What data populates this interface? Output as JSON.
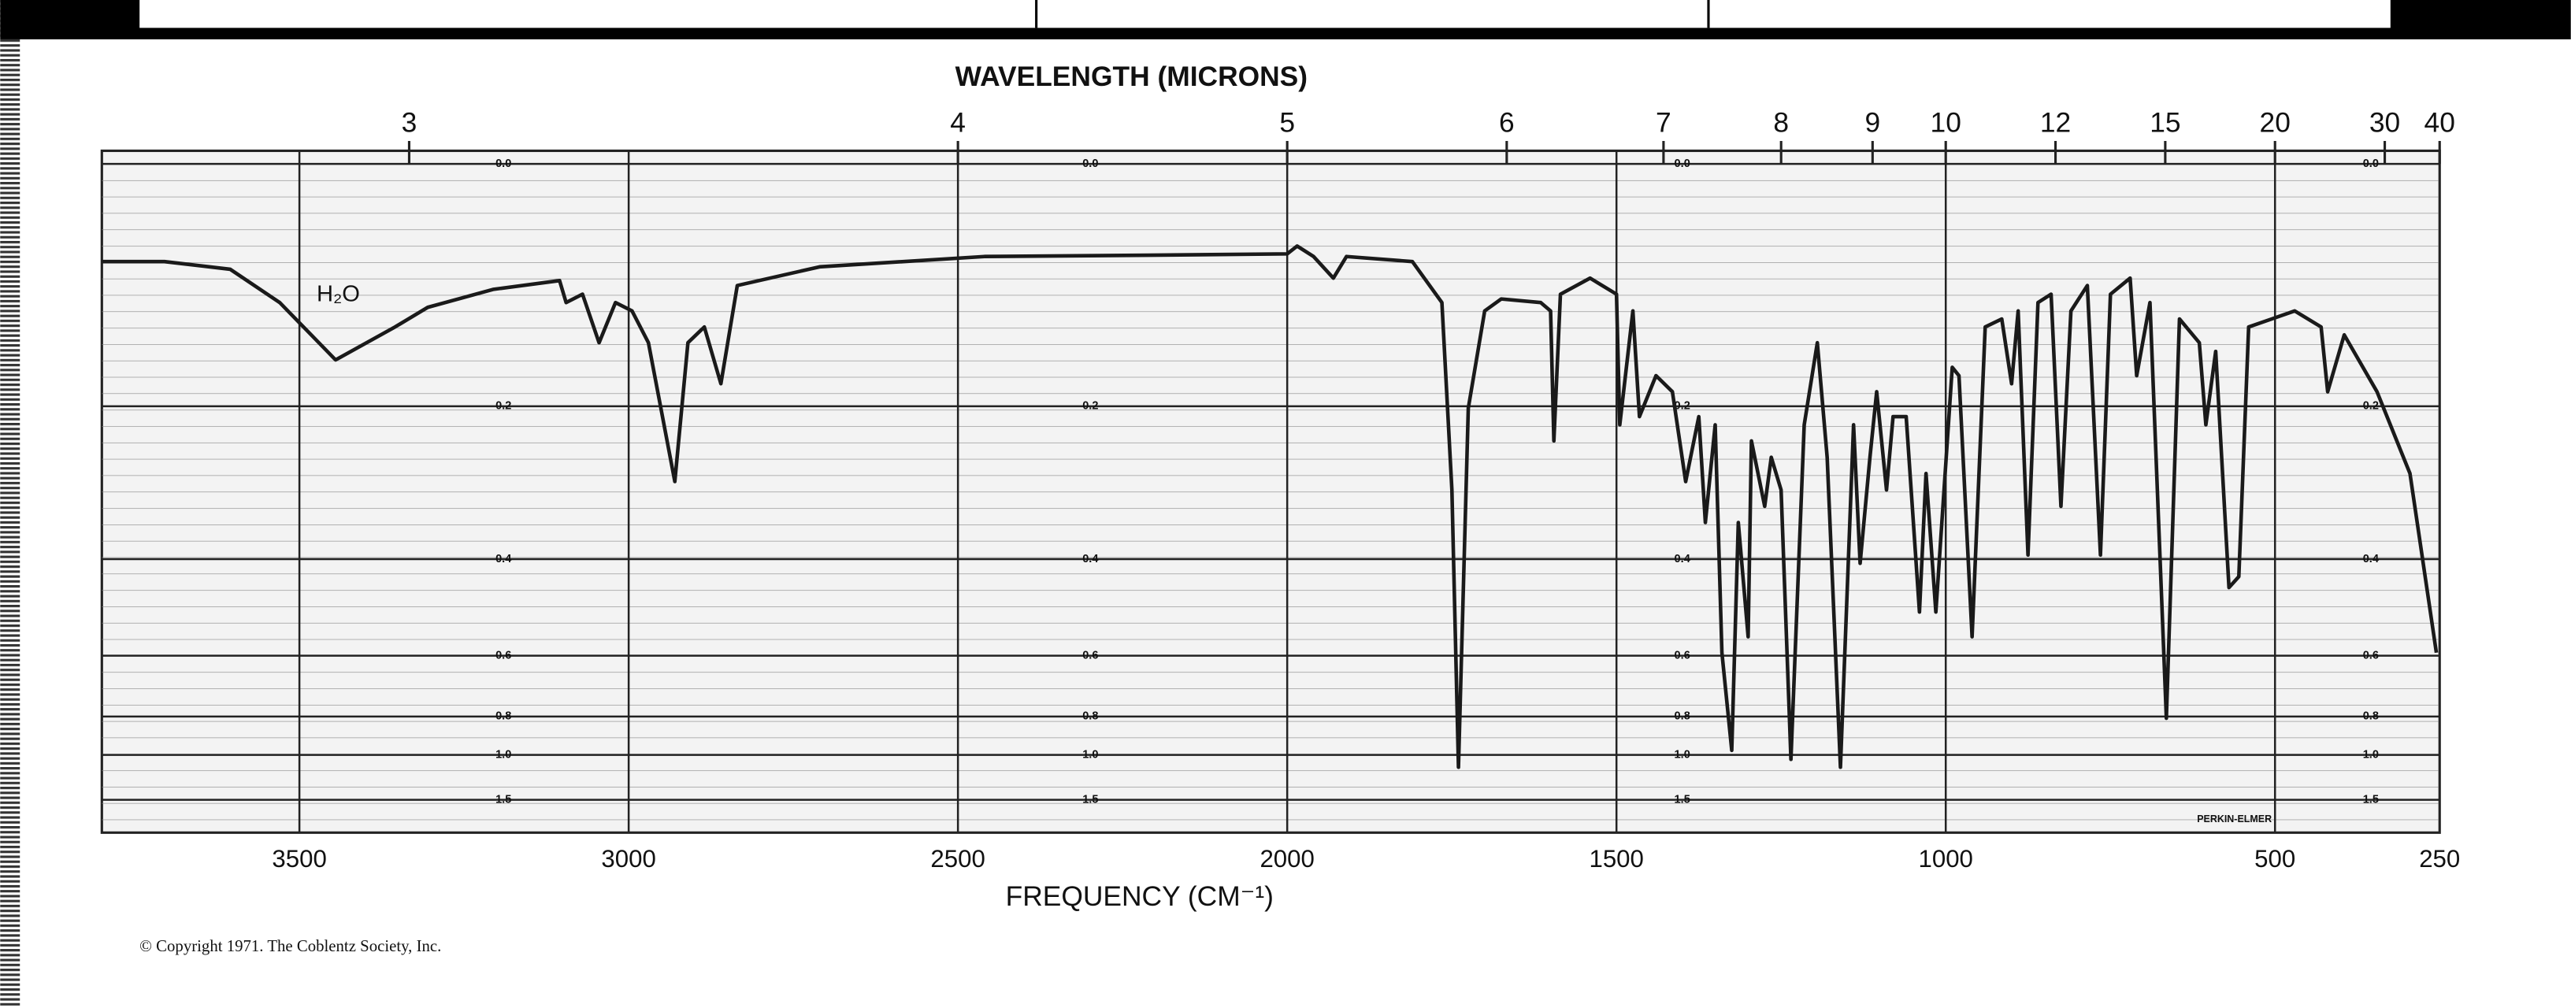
{
  "chart_data": {
    "type": "line",
    "title": "WAVELENGTH (MICRONS)",
    "x_label": "FREQUENCY (CM⁻¹)",
    "annotations": [
      "H₂O",
      "PERKIN-ELMER"
    ],
    "footer": "© Copyright 1971. The Coblentz Society, Inc.",
    "color": "#1a1a1a",
    "grid": true,
    "xlim": [
      3800,
      250
    ],
    "xticks": [
      3500,
      3000,
      2500,
      2000,
      1500,
      1000,
      500,
      250
    ],
    "x2ticks": [
      3,
      4,
      5,
      6,
      7,
      8,
      9,
      10,
      12,
      15,
      20,
      30,
      40
    ],
    "ylim": [
      0,
      1.5
    ],
    "yscale": "absorbance",
    "yticks": [
      {
        "value": 0,
        "label": "0.0"
      },
      0.2,
      0.4,
      0.6,
      0.8,
      {
        "value": 1,
        "label": "1.0"
      },
      1.5
    ],
    "x": [
      3800,
      3705,
      3605,
      3530,
      3445,
      3355,
      3305,
      3205,
      3105,
      3095,
      3070,
      3045,
      3020,
      2995,
      2970,
      2930,
      2910,
      2885,
      2860,
      2835,
      2710,
      2460,
      2210,
      2000,
      1985,
      1960,
      1930,
      1910,
      1810,
      1765,
      1750,
      1740,
      1725,
      1700,
      1675,
      1615,
      1600,
      1595,
      1585,
      1540,
      1500,
      1495,
      1475,
      1465,
      1440,
      1415,
      1395,
      1375,
      1365,
      1350,
      1340,
      1325,
      1315,
      1300,
      1295,
      1275,
      1265,
      1250,
      1235,
      1215,
      1195,
      1180,
      1160,
      1140,
      1130,
      1115,
      1105,
      1090,
      1080,
      1060,
      1040,
      1030,
      1015,
      990,
      980,
      960,
      940,
      915,
      900,
      890,
      875,
      860,
      840,
      825,
      810,
      785,
      765,
      750,
      720,
      710,
      690,
      665,
      645,
      615,
      605,
      590,
      570,
      555,
      540,
      505,
      470,
      430,
      420,
      395,
      345,
      295,
      255
    ],
    "values": [
      0.07,
      0.07,
      0.076,
      0.103,
      0.154,
      0.124,
      0.107,
      0.092,
      0.085,
      0.103,
      0.096,
      0.138,
      0.103,
      0.11,
      0.138,
      0.287,
      0.138,
      0.124,
      0.177,
      0.089,
      0.074,
      0.066,
      0.065,
      0.064,
      0.058,
      0.066,
      0.083,
      0.066,
      0.07,
      0.103,
      0.298,
      1.09,
      0.202,
      0.11,
      0.1,
      0.103,
      0.11,
      0.238,
      0.096,
      0.083,
      0.096,
      0.22,
      0.11,
      0.211,
      0.169,
      0.185,
      0.287,
      0.211,
      0.343,
      0.22,
      0.592,
      0.971,
      0.343,
      0.553,
      0.238,
      0.32,
      0.257,
      0.298,
      1.03,
      0.22,
      0.138,
      0.257,
      1.09,
      0.22,
      0.407,
      0.257,
      0.185,
      0.298,
      0.211,
      0.211,
      0.498,
      0.277,
      0.498,
      0.161,
      0.169,
      0.553,
      0.124,
      0.117,
      0.177,
      0.11,
      0.393,
      0.103,
      0.096,
      0.32,
      0.11,
      0.089,
      0.393,
      0.096,
      0.083,
      0.169,
      0.103,
      0.807,
      0.117,
      0.138,
      0.22,
      0.146,
      0.45,
      0.43,
      0.124,
      0.117,
      0.11,
      0.124,
      0.185,
      0.131,
      0.185,
      0.277,
      0.592
    ]
  }
}
